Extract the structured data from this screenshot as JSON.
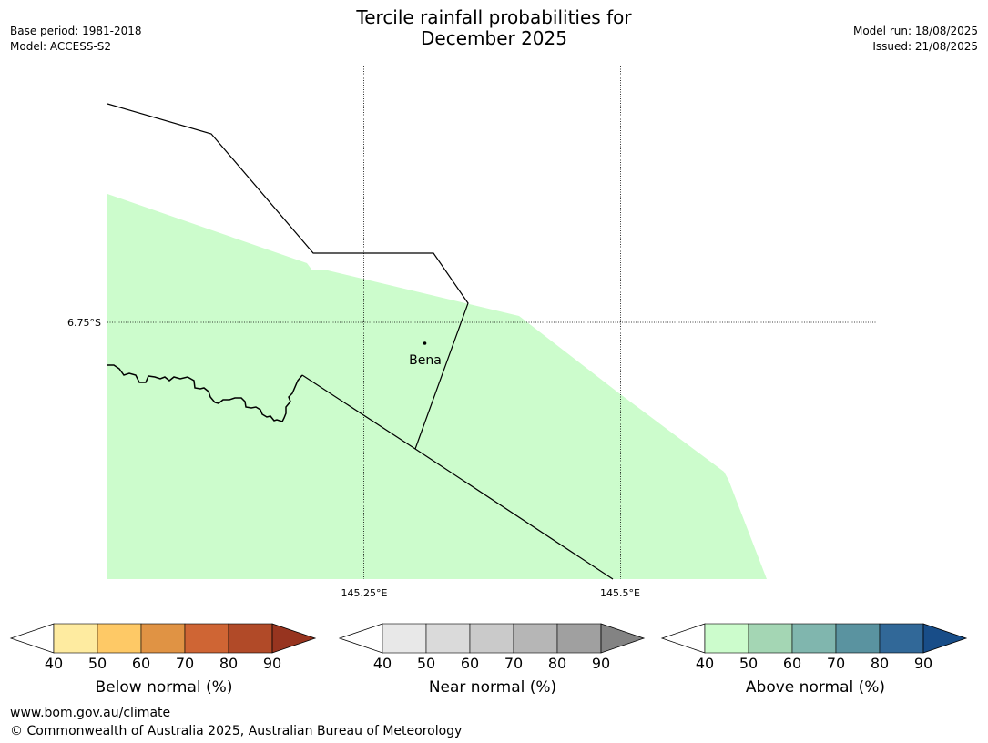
{
  "header": {
    "title_line1": "Tercile rainfall probabilities for",
    "title_line2": "December 2025",
    "base_period": "Base period: 1981-2018",
    "model": "Model: ACCESS-S2",
    "model_run": "Model run: 18/08/2025",
    "issued": "Issued: 21/08/2025"
  },
  "map": {
    "lat_label": "6.75°S",
    "lon_labels": [
      "145.25°E",
      "145.5°E"
    ],
    "place_name": "Bena",
    "fill_color": "#ccfccc",
    "fill_category": "Above normal",
    "fill_probability_range": "40-50"
  },
  "colorbars": [
    {
      "label": "Below normal (%)",
      "ticks": [
        "40",
        "50",
        "60",
        "70",
        "80",
        "90"
      ],
      "colors": [
        "#ffffff",
        "#feeba0",
        "#fec966",
        "#e09344",
        "#cf6534",
        "#b14a28",
        "#97341f"
      ]
    },
    {
      "label": "Near normal (%)",
      "ticks": [
        "40",
        "50",
        "60",
        "70",
        "80",
        "90"
      ],
      "colors": [
        "#ffffff",
        "#e8e8e8",
        "#dadada",
        "#cacaca",
        "#b6b6b6",
        "#a0a0a0",
        "#838383"
      ]
    },
    {
      "label": "Above normal (%)",
      "ticks": [
        "40",
        "50",
        "60",
        "70",
        "80",
        "90"
      ],
      "colors": [
        "#ffffff",
        "#ccfccc",
        "#a4d6b4",
        "#80b6ae",
        "#5a93a0",
        "#316898",
        "#184d88"
      ]
    }
  ],
  "footer": {
    "url": "www.bom.gov.au/climate",
    "copyright": "© Commonwealth of Australia 2025, Australian Bureau of Meteorology"
  }
}
